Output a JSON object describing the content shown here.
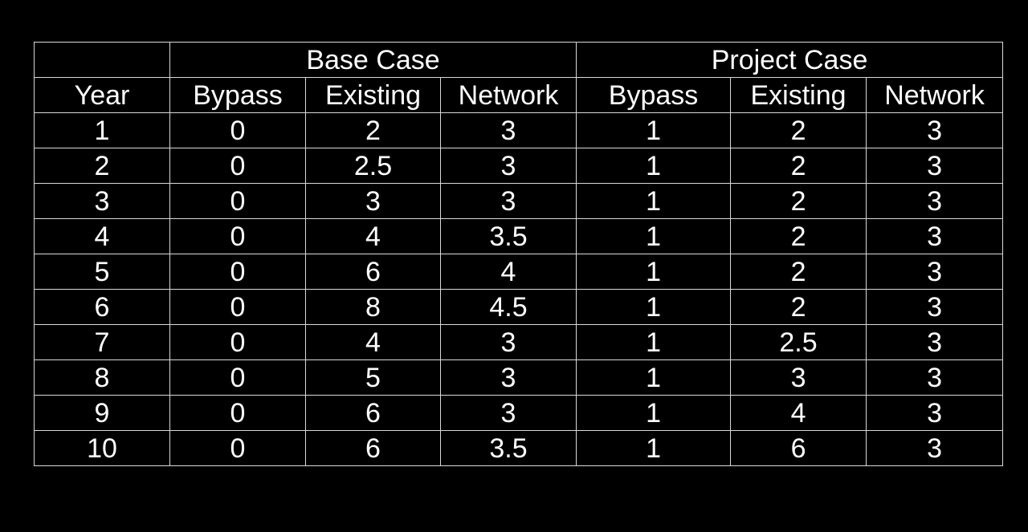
{
  "table": {
    "group_headers": [
      "",
      "Base Case",
      "Project Case"
    ],
    "column_headers": [
      "Year",
      "Bypass",
      "Existing",
      "Network",
      "Bypass",
      "Existing",
      "Network"
    ],
    "rows": [
      [
        "1",
        "0",
        "2",
        "3",
        "1",
        "2",
        "3"
      ],
      [
        "2",
        "0",
        "2.5",
        "3",
        "1",
        "2",
        "3"
      ],
      [
        "3",
        "0",
        "3",
        "3",
        "1",
        "2",
        "3"
      ],
      [
        "4",
        "0",
        "4",
        "3.5",
        "1",
        "2",
        "3"
      ],
      [
        "5",
        "0",
        "6",
        "4",
        "1",
        "2",
        "3"
      ],
      [
        "6",
        "0",
        "8",
        "4.5",
        "1",
        "2",
        "3"
      ],
      [
        "7",
        "0",
        "4",
        "3",
        "1",
        "2.5",
        "3"
      ],
      [
        "8",
        "0",
        "5",
        "3",
        "1",
        "3",
        "3"
      ],
      [
        "9",
        "0",
        "6",
        "3",
        "1",
        "4",
        "3"
      ],
      [
        "10",
        "0",
        "6",
        "3.5",
        "1",
        "6",
        "3"
      ]
    ]
  },
  "colors": {
    "background": "#000000",
    "text": "#ffffff",
    "grid": "#d9d9d9"
  }
}
